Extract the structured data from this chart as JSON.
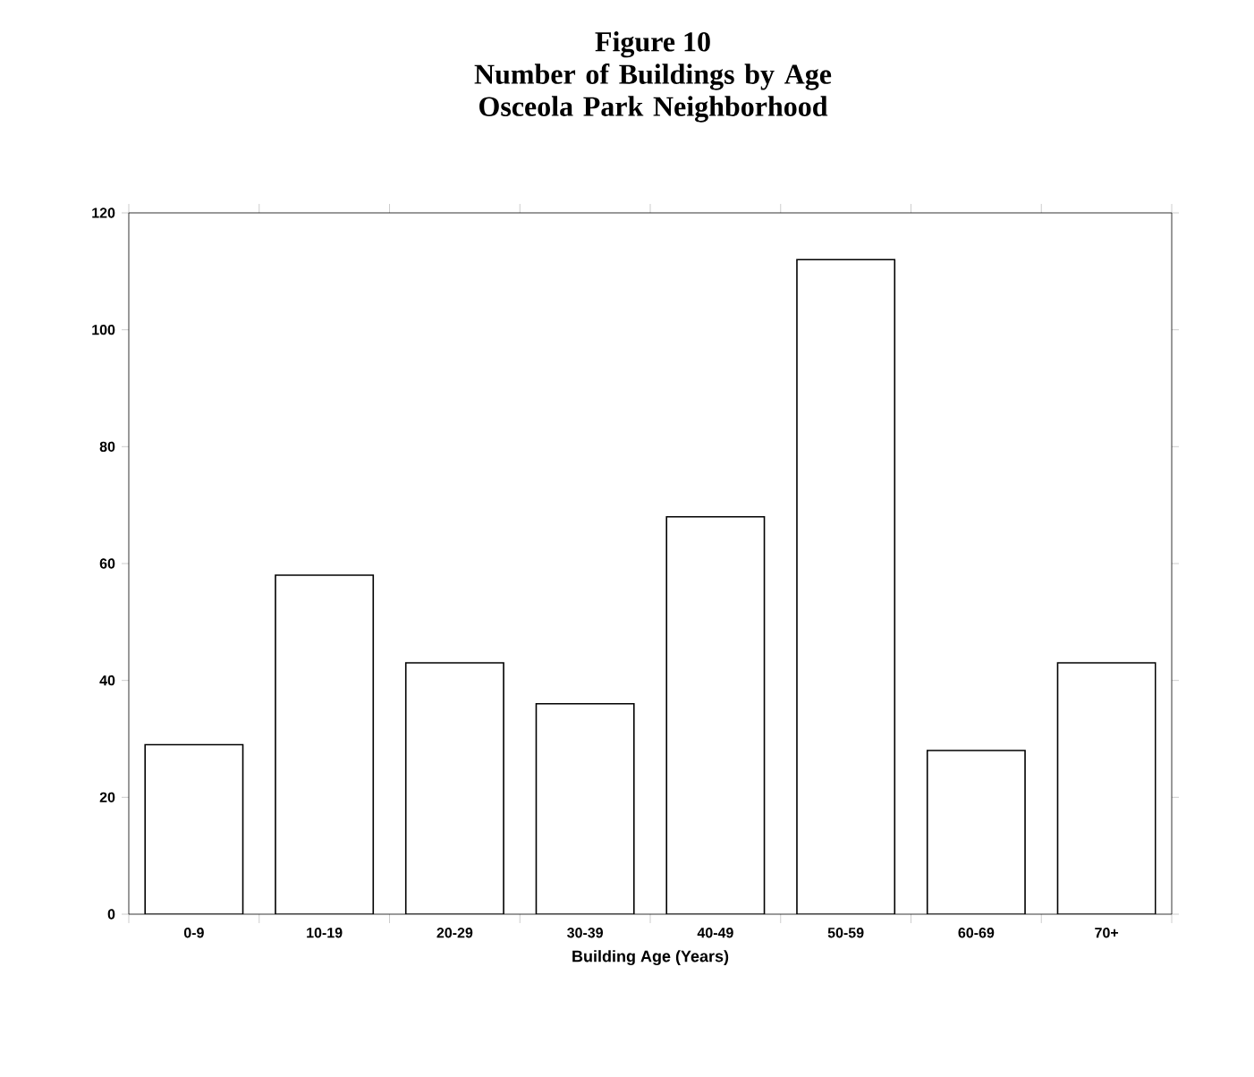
{
  "chart_data": {
    "type": "bar",
    "title": "Figure 10",
    "subtitle": "Number of Buildings by Age Osceola Park Neighborhood",
    "xlabel": "Building Age (Years)",
    "categories": [
      "0-9",
      "10-19",
      "20-29",
      "30-39",
      "40-49",
      "50-59",
      "60-69",
      "70+"
    ],
    "values": [
      29,
      58,
      43,
      36,
      68,
      112,
      28,
      43
    ],
    "color": "#ffffff",
    "ylim": [
      0,
      120
    ],
    "yticks": [
      0,
      20,
      40,
      60,
      80,
      100,
      120
    ]
  }
}
